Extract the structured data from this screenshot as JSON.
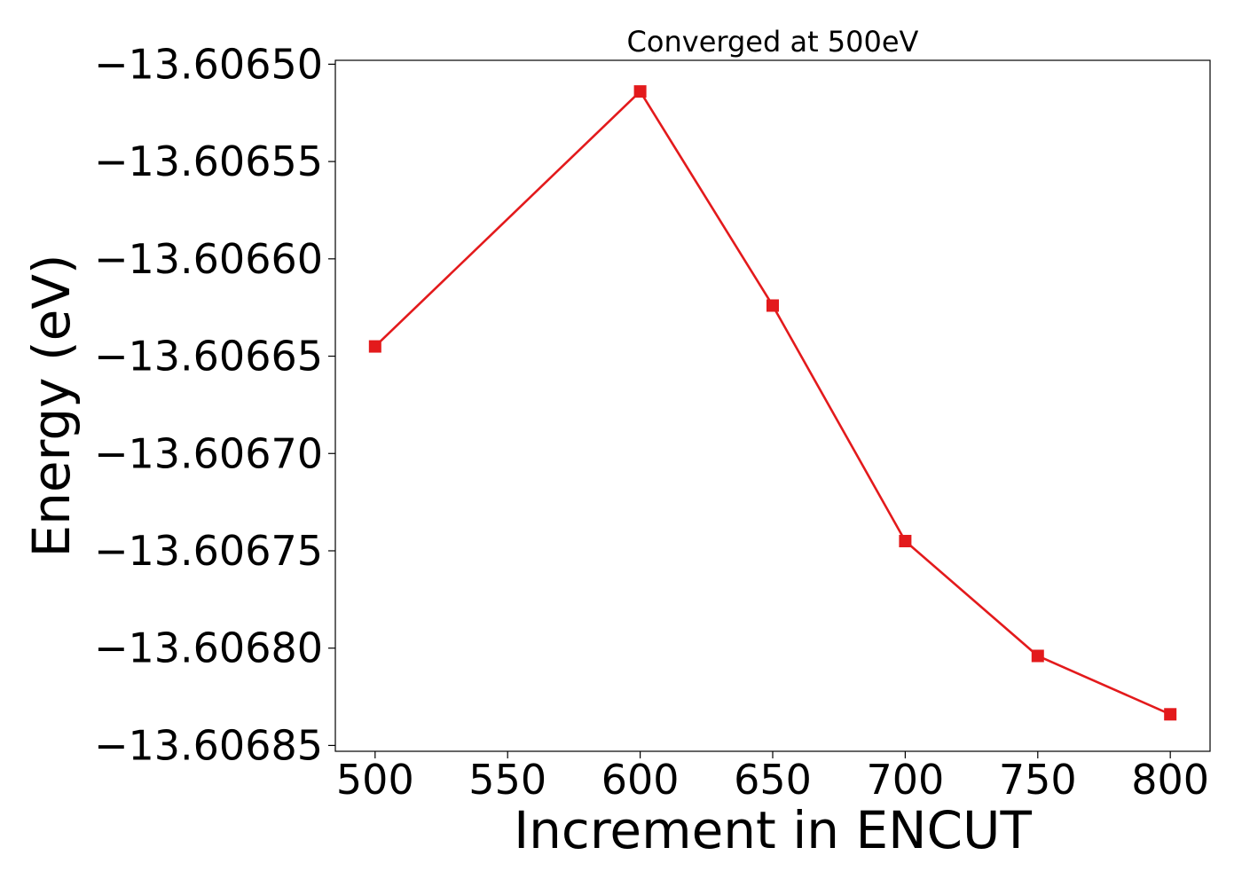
{
  "chart_data": {
    "type": "line",
    "title": "Converged at 500eV",
    "xlabel": "Increment in ENCUT",
    "ylabel": "Energy (eV)",
    "x": [
      500,
      600,
      650,
      700,
      750,
      800
    ],
    "series": [
      {
        "values": [
          -13.606645,
          -13.606514,
          -13.606624,
          -13.606745,
          -13.606804,
          -13.606834
        ],
        "color": "#e31a1c",
        "marker": "square"
      }
    ],
    "xlim": [
      485,
      815
    ],
    "ylim": [
      -13.606853,
      -13.606498
    ],
    "xticks": [
      500,
      550,
      600,
      650,
      700,
      750,
      800
    ],
    "xtick_labels": [
      "500",
      "550",
      "600",
      "650",
      "700",
      "750",
      "800"
    ],
    "yticks": [
      -13.6065,
      -13.60655,
      -13.6066,
      -13.60665,
      -13.6067,
      -13.60675,
      -13.6068,
      -13.60685
    ],
    "ytick_labels": [
      "−13.60650",
      "−13.60655",
      "−13.60660",
      "−13.60665",
      "−13.60670",
      "−13.60675",
      "−13.60680",
      "−13.60685"
    ],
    "grid": false,
    "legend": "none"
  }
}
